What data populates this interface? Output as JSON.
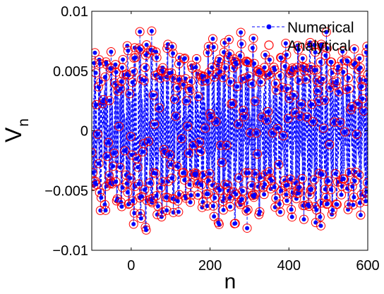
{
  "chart_data": {
    "type": "line",
    "xlabel": "n",
    "ylabel": "V",
    "ylabel_sub": "n",
    "xlim": [
      -100,
      600
    ],
    "ylim": [
      -0.01,
      0.01
    ],
    "xticks": [
      0,
      200,
      400,
      600
    ],
    "xtick_labels": [
      "0",
      "200",
      "400",
      "600"
    ],
    "yticks": [
      -0.01,
      -0.005,
      0,
      0.005,
      0.01
    ],
    "ytick_labels": [
      "−0.01",
      "−0.005",
      "0",
      "0.005",
      "0.01"
    ],
    "grid": false,
    "legend_position": "top-right",
    "series": [
      {
        "name": "Numerical",
        "style": "dashed line with dot markers",
        "color": "#0000ff",
        "description": "Oscillating lattice signal over n = -100..600 with amplitude about 0.006-0.008; plotted below from a generated quasi-periodic sequence"
      },
      {
        "name": "Analytical",
        "style": "open circle markers",
        "color": "#ff0000"
      }
    ],
    "signal": {
      "n_start": -100,
      "n_end": 600,
      "n_step": 1,
      "base_amplitude": 0.0062,
      "modulation_amplitude": 0.0016,
      "carrier_period": 2.15,
      "modulation_period": 210
    }
  }
}
